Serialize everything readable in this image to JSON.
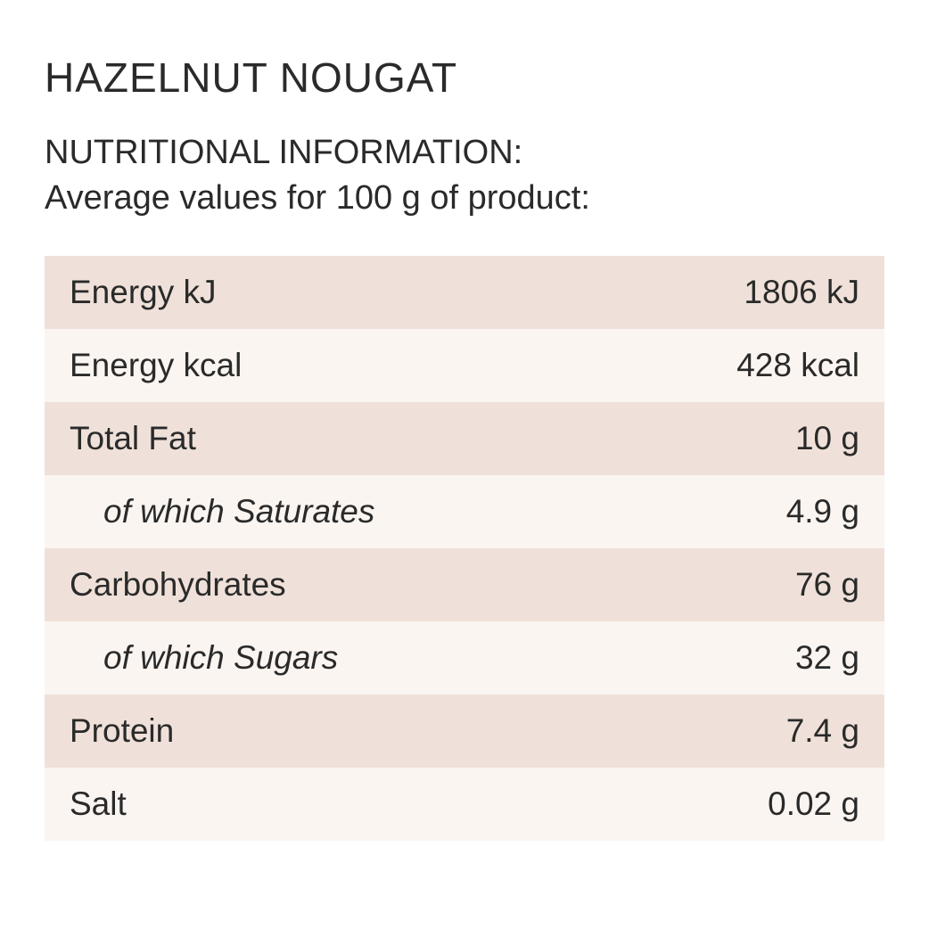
{
  "title": "HAZELNUT NOUGAT",
  "subtitle_line1": "NUTRITIONAL INFORMATION:",
  "subtitle_line2": "Average values for 100 g of product:",
  "table": {
    "row_bg_dark": "#efe1d9",
    "row_bg_light": "#fbf5f1",
    "text_color": "#2a2a2a",
    "font_size": 37,
    "rows": [
      {
        "label": "Energy kJ",
        "value": "1806 kJ",
        "sub": false
      },
      {
        "label": "Energy kcal",
        "value": "428 kcal",
        "sub": false
      },
      {
        "label": "Total Fat",
        "value": "10 g",
        "sub": false
      },
      {
        "label": "of which Saturates",
        "value": "4.9 g",
        "sub": true
      },
      {
        "label": "Carbohydrates",
        "value": "76 g",
        "sub": false
      },
      {
        "label": "of which Sugars",
        "value": "32 g",
        "sub": true
      },
      {
        "label": "Protein",
        "value": "7.4 g",
        "sub": false
      },
      {
        "label": "Salt",
        "value": "0.02 g",
        "sub": false
      }
    ]
  }
}
